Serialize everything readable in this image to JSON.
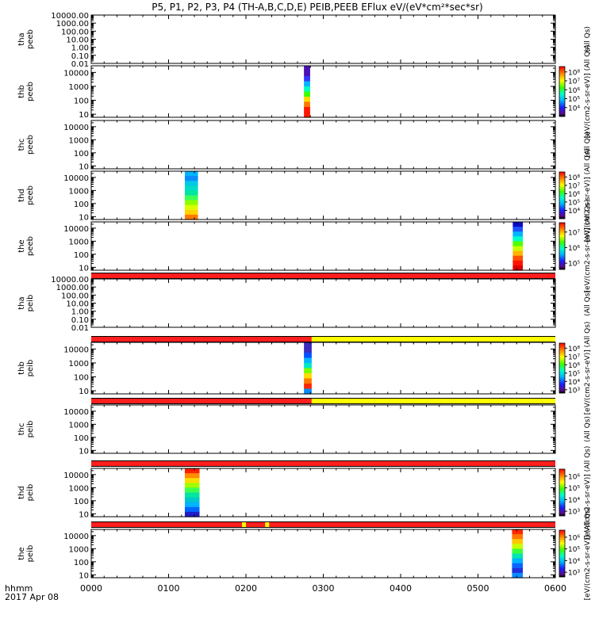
{
  "title": "P5, P1, P2, P3, P4 (TH-A,B,C,D,E) PEIB,PEEB EFlux eV/(eV*cm²*sec*sr)",
  "chart_data": {
    "type": "heatmap",
    "title": "P5, P1, P2, P3, P4 (TH-A,B,C,D,E) PEIB,PEEB EFlux eV/(eV*cm²*sec*sr)",
    "x_ticks": [
      "0000",
      "0100",
      "0200",
      "0300",
      "0400",
      "0500",
      "0600"
    ],
    "x_range_hours": [
      0,
      6
    ],
    "x_label": "hhmm",
    "date": "2017 Apr 08",
    "panels": [
      {
        "probe": "tha",
        "instrument": "peeb",
        "y_ticks": [
          "10000.00",
          "1000.00",
          "100.00",
          "10.00",
          "1.00",
          "0.10",
          "0.01"
        ],
        "ylim": [
          0.01,
          10000
        ],
        "y_scale": "log",
        "data": [],
        "colorbar": null,
        "colorbar_label": "(All Qs)"
      },
      {
        "probe": "thb",
        "instrument": "peeb",
        "y_ticks": [
          "10000",
          "1000",
          "100",
          "10"
        ],
        "ylim": [
          6,
          30000
        ],
        "y_scale": "log",
        "colorbar": {
          "ticks": [
            "10⁸",
            "10⁷",
            "10⁶",
            "10⁵",
            "10⁴"
          ],
          "range_exp": [
            3,
            8.6
          ]
        },
        "data": [
          {
            "t_start": 2.75,
            "t_end": 2.83,
            "colors": [
              "#4b10b5",
              "#4b10b5",
              "#3535ff",
              "#00b4ff",
              "#00ffc0",
              "#3cff00",
              "#ffd800",
              "#ff7800",
              "#ff1500",
              "#ff1500"
            ]
          }
        ],
        "colorbar_label": "[eV/(cm2-s-sr-eV)] (All Qs)"
      },
      {
        "probe": "thc",
        "instrument": "peeb",
        "y_ticks": [
          "10000",
          "1000",
          "100",
          "10"
        ],
        "ylim": [
          6,
          30000
        ],
        "y_scale": "log",
        "data": [],
        "colorbar": null,
        "colorbar_label": "(All Qs)"
      },
      {
        "probe": "thd",
        "instrument": "peeb",
        "y_ticks": [
          "10000",
          "1000",
          "100",
          "10"
        ],
        "ylim": [
          6,
          30000
        ],
        "y_scale": "log",
        "colorbar": {
          "ticks": [
            "10⁸",
            "10⁷",
            "10⁶",
            "10⁵",
            "10⁴"
          ],
          "range_exp": [
            3,
            8.6
          ]
        },
        "data": [
          {
            "t_start": 1.21,
            "t_end": 1.38,
            "colors": [
              "#00b4ff",
              "#0a8cff",
              "#00c8e6",
              "#00dcc8",
              "#00e6a0",
              "#3cff5a",
              "#8cff00",
              "#dcff00",
              "#ffd200",
              "#ff7800"
            ]
          }
        ],
        "colorbar_label": "[eV/(cm2-s-sr-eV)] (All Qs)"
      },
      {
        "probe": "the",
        "instrument": "peeb",
        "y_ticks": [
          "10000",
          "1000",
          "100",
          "10"
        ],
        "ylim": [
          6,
          30000
        ],
        "y_scale": "log",
        "colorbar": {
          "ticks": [
            "10⁷",
            "10⁶",
            "10⁵"
          ],
          "range_exp": [
            4.6,
            7.6
          ]
        },
        "data": [
          {
            "t_start": 5.45,
            "t_end": 5.58,
            "colors": [
              "#0a0ac8",
              "#1e50ff",
              "#00b4ff",
              "#00ffc8",
              "#50ff00",
              "#c8ff00",
              "#ffb400",
              "#ff5000",
              "#ff1400",
              "#dc0000"
            ]
          }
        ],
        "colorbar_label": "[eV/(cm2-s-sr-eV)] (All Qs)"
      },
      {
        "probe": "tha",
        "instrument": "peib",
        "y_ticks": [
          "10000.00",
          "1000.00",
          "100.00",
          "10.00",
          "1.00",
          "0.10",
          "0.01"
        ],
        "ylim": [
          0.01,
          10000
        ],
        "y_scale": "log",
        "data": [],
        "colorbar": null,
        "colorbar_label": "(All Qs)",
        "status_bar": [
          {
            "t_start": 0,
            "t_end": 6,
            "color": "#ff1e1e"
          }
        ]
      },
      {
        "probe": "thb",
        "instrument": "peib",
        "y_ticks": [
          "10000",
          "1000",
          "100",
          "10"
        ],
        "ylim": [
          6,
          30000
        ],
        "y_scale": "log",
        "colorbar": {
          "ticks": [
            "10⁸",
            "10⁷",
            "10⁶",
            "10⁵",
            "10⁴",
            "10³"
          ],
          "range_exp": [
            2.6,
            8.6
          ]
        },
        "data": [
          {
            "t_start": 2.75,
            "t_end": 2.85,
            "colors": [
              "#3c2dbe",
              "#3c2dbe",
              "#0050ff",
              "#00b4ff",
              "#00e6c8",
              "#78ff00",
              "#ffdc00",
              "#ff7800",
              "#ff2800",
              "#0a8cff"
            ]
          }
        ],
        "colorbar_label": "[eV/(cm2-s-sr-eV)] (All Qs)",
        "status_bar": [
          {
            "t_start": 0,
            "t_end": 2.85,
            "color": "#ff1e1e"
          },
          {
            "t_start": 2.85,
            "t_end": 6,
            "color": "#ffff00"
          }
        ]
      },
      {
        "probe": "thc",
        "instrument": "peib",
        "y_ticks": [
          "10000",
          "1000",
          "100",
          "10"
        ],
        "ylim": [
          6,
          30000
        ],
        "y_scale": "log",
        "data": [],
        "colorbar": null,
        "colorbar_label": "(All Qs)",
        "status_bar": [
          {
            "t_start": 0,
            "t_end": 2.85,
            "color": "#ff1e1e"
          },
          {
            "t_start": 2.85,
            "t_end": 6,
            "color": "#ffff00"
          }
        ]
      },
      {
        "probe": "thd",
        "instrument": "peib",
        "y_ticks": [
          "10000",
          "1000",
          "100",
          "10"
        ],
        "ylim": [
          6,
          30000
        ],
        "y_scale": "log",
        "colorbar": {
          "ticks": [
            "10⁶",
            "10⁵",
            "10⁴",
            "10³"
          ],
          "range_exp": [
            2.6,
            6.6
          ]
        },
        "data": [
          {
            "t_start": 1.21,
            "t_end": 1.4,
            "colors": [
              "#ff1e00",
              "#ff8c00",
              "#ffdc00",
              "#a0ff00",
              "#3cff50",
              "#00e6a0",
              "#00c8c8",
              "#00b4ff",
              "#0064ff",
              "#1e1ec8"
            ]
          }
        ],
        "colorbar_label": "[eV/(cm2-s-sr-eV)] (All Qs)",
        "status_bar": [
          {
            "t_start": 0,
            "t_end": 6,
            "color": "#ff1e1e"
          }
        ]
      },
      {
        "probe": "the",
        "instrument": "peib",
        "y_ticks": [
          "10000",
          "1000",
          "100",
          "10"
        ],
        "ylim": [
          6,
          30000
        ],
        "y_scale": "log",
        "colorbar": {
          "ticks": [
            "10⁶",
            "10⁵",
            "10⁴",
            "10³"
          ],
          "range_exp": [
            2.6,
            6.6
          ]
        },
        "data": [
          {
            "t_start": 5.44,
            "t_end": 5.58,
            "colors": [
              "#ff2800",
              "#ff7800",
              "#ffc800",
              "#c8ff00",
              "#3cff3c",
              "#00e6b4",
              "#00b4ff",
              "#0a64ff",
              "#1e32dc",
              "#0a8cff"
            ]
          }
        ],
        "colorbar_label": "[eV/(cm2-s-sr-eV)] (All Qs)",
        "status_bar": [
          {
            "t_start": 0,
            "t_end": 1.95,
            "color": "#ff1e1e"
          },
          {
            "t_start": 1.95,
            "t_end": 2.0,
            "color": "#ffff00"
          },
          {
            "t_start": 2.0,
            "t_end": 2.25,
            "color": "#ff1e1e"
          },
          {
            "t_start": 2.25,
            "t_end": 2.3,
            "color": "#ffff00"
          },
          {
            "t_start": 2.3,
            "t_end": 6,
            "color": "#ff1e1e"
          }
        ]
      }
    ]
  }
}
